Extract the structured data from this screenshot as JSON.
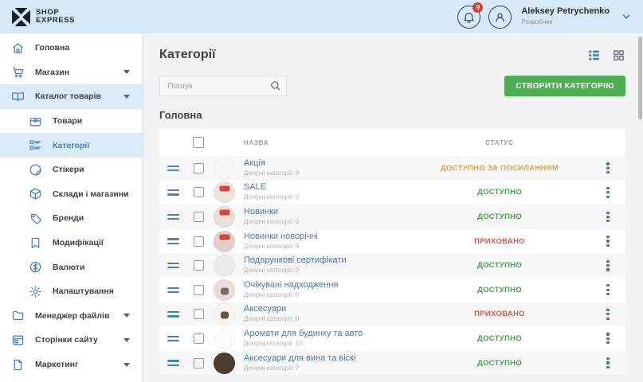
{
  "header": {
    "logo_line1": "SHOP",
    "logo_line2": "EXPRESS",
    "notification_count": "9",
    "user_name": "Aleksey Petrychenko",
    "user_role": "Розробник"
  },
  "sidebar": {
    "items": [
      {
        "id": "home",
        "label": "Головна",
        "icon": "home-icon",
        "level": 0,
        "caret": false,
        "active": false,
        "selected": false
      },
      {
        "id": "shop",
        "label": "Магазин",
        "icon": "cart-icon",
        "level": 0,
        "caret": true,
        "active": false,
        "selected": false
      },
      {
        "id": "catalog",
        "label": "Каталог товарів",
        "icon": "catalog-book-icon",
        "level": 0,
        "caret": true,
        "active": true,
        "selected": false
      },
      {
        "id": "products",
        "label": "Товари",
        "icon": "products-box-icon",
        "level": 1,
        "caret": false,
        "active": false,
        "selected": false
      },
      {
        "id": "categories",
        "label": "Категорії",
        "icon": "categories-list-icon",
        "level": 1,
        "caret": false,
        "active": false,
        "selected": true
      },
      {
        "id": "stickers",
        "label": "Стікери",
        "icon": "sticker-icon",
        "level": 1,
        "caret": false,
        "active": false,
        "selected": false
      },
      {
        "id": "warehouses",
        "label": "Склади і магазини",
        "icon": "package-cube-icon",
        "level": 1,
        "caret": false,
        "active": false,
        "selected": false
      },
      {
        "id": "brands",
        "label": "Бренди",
        "icon": "tag-icon",
        "level": 1,
        "caret": false,
        "active": false,
        "selected": false
      },
      {
        "id": "modifications",
        "label": "Модифікації",
        "icon": "bookmark-icon",
        "level": 1,
        "caret": false,
        "active": false,
        "selected": false
      },
      {
        "id": "currencies",
        "label": "Валюти",
        "icon": "dollar-circle-icon",
        "level": 1,
        "caret": false,
        "active": false,
        "selected": false
      },
      {
        "id": "settings",
        "label": "Налаштування",
        "icon": "gear-icon",
        "level": 1,
        "caret": false,
        "active": false,
        "selected": false
      },
      {
        "id": "files",
        "label": "Менеджер файлів",
        "icon": "folder-icon",
        "level": 0,
        "caret": true,
        "active": false,
        "selected": false
      },
      {
        "id": "pages",
        "label": "Сторінки сайту",
        "icon": "browser-window-icon",
        "level": 0,
        "caret": true,
        "active": false,
        "selected": false
      },
      {
        "id": "marketing",
        "label": "Маркетинг",
        "icon": "page-curl-icon",
        "level": 0,
        "caret": true,
        "active": false,
        "selected": false
      }
    ]
  },
  "main": {
    "title": "Категорії",
    "search_placeholder": "Пошук",
    "create_button": "СТВОРИТИ КАТЕГОРІЮ",
    "section_title": "Головна",
    "table": {
      "columns": {
        "name": "НАЗВА",
        "status": "СТАТУС"
      },
      "rows": [
        {
          "name": "Акція",
          "children": "Дочірні категорії: 0",
          "status": "ДОСТУПНО ЗА ПОСИЛАННЯМ",
          "status_color": "#eda13c",
          "thumb_bg": "#f7f6f5",
          "thumb_badge": "",
          "thumb_dot": ""
        },
        {
          "name": "SALE",
          "children": "Дочірні категорії: 0",
          "status": "ДОСТУПНО",
          "status_color": "#47a44b",
          "thumb_bg": "#eee3dd",
          "thumb_badge": "#d8453c",
          "thumb_dot": ""
        },
        {
          "name": "Новинки",
          "children": "Дочірні категорії: 0",
          "status": "ДОСТУПНО",
          "status_color": "#47a44b",
          "thumb_bg": "#eadfdb",
          "thumb_badge": "#d8453c",
          "thumb_dot": ""
        },
        {
          "name": "Новинки новорічні",
          "children": "Дочірні категорії: 0",
          "status": "ПРИХОВАНО",
          "status_color": "#e0564a",
          "thumb_bg": "#e3cfc9",
          "thumb_badge": "#d8453c",
          "thumb_dot": ""
        },
        {
          "name": "Подарункові сертифікати",
          "children": "Дочірні категорії: 0",
          "status": "ДОСТУПНО",
          "status_color": "#47a44b",
          "thumb_bg": "#e9eaeb",
          "thumb_badge": "",
          "thumb_dot": ""
        },
        {
          "name": "Очікувані надходження",
          "children": "Дочірні категорії: 0",
          "status": "ДОСТУПНО",
          "status_color": "#47a44b",
          "thumb_bg": "#ecdbd8",
          "thumb_badge": "",
          "thumb_dot": "#7a6a63"
        },
        {
          "name": "Аксесуари",
          "children": "Дочірні категорії: 0",
          "status": "ПРИХОВАНО",
          "status_color": "#e0564a",
          "thumb_bg": "#f7f4f2",
          "thumb_badge": "",
          "thumb_dot": "#6b5446"
        },
        {
          "name": "Аромати для будинку та авто",
          "children": "Дочірні категорії: 10",
          "status": "ДОСТУПНО",
          "status_color": "#47a44b",
          "thumb_bg": "#fbfbfa",
          "thumb_badge": "",
          "thumb_dot": ""
        },
        {
          "name": "Аксесуари для вина та віскі",
          "children": "Дочірні категорії: 7",
          "status": "ДОСТУПНО",
          "status_color": "#47a44b",
          "thumb_bg": "#4d3b2e",
          "thumb_badge": "",
          "thumb_dot": ""
        }
      ]
    }
  },
  "colors": {
    "header_bg": "#d7e8f8",
    "sidebar_highlight": "#dcebfa",
    "accent_blue": "#4a7fc1",
    "link_blue": "#4e7ab5",
    "green": "#47a44b",
    "orange": "#eda13c",
    "red": "#e0564a",
    "create_button_green": "#4caf50",
    "badge_red": "#e23d33"
  }
}
